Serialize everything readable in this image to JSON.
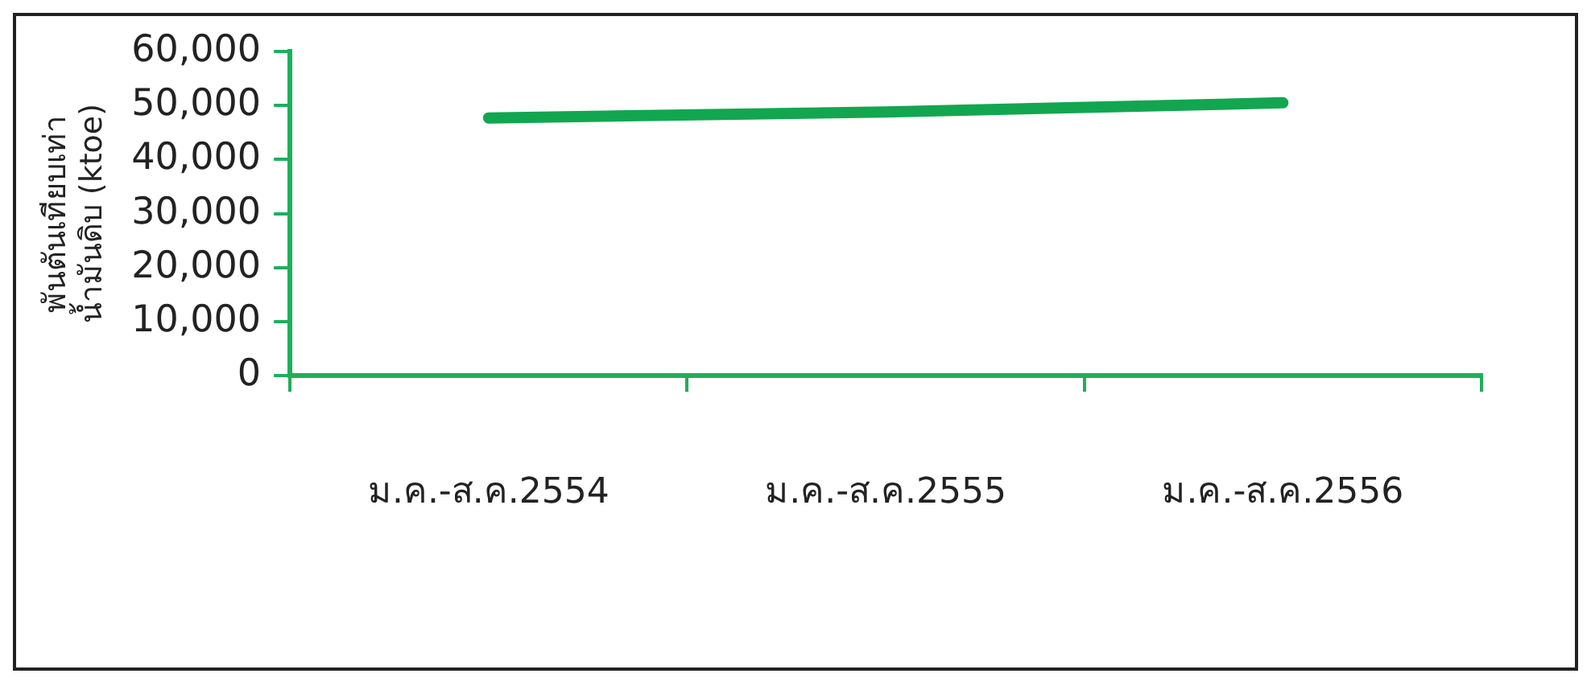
{
  "chart_data": {
    "type": "line",
    "ylabel": "พันตันเทียบเท่า\nน้ำมันดิบ (ktoe)",
    "categories": [
      "ม.ค.-ส.ค.2554",
      "ม.ค.-ส.ค.2555",
      "ม.ค.-ส.ค.2556"
    ],
    "series": [
      {
        "color": "#12a650",
        "values": [
          47700,
          48800,
          50500
        ]
      }
    ],
    "ylim": [
      0,
      60000
    ],
    "yticks": [
      0,
      {
        "value": 10000,
        "label": "10,000"
      },
      {
        "value": 20000,
        "label": "20,000"
      },
      {
        "value": 30000,
        "label": "30,000"
      },
      {
        "value": 40000,
        "label": "40,000"
      },
      {
        "value": 50000,
        "label": "50,000"
      },
      {
        "value": 60000,
        "label": "60,000"
      }
    ],
    "grid": false,
    "legend": false,
    "marker": "none",
    "line_style": "solid"
  }
}
